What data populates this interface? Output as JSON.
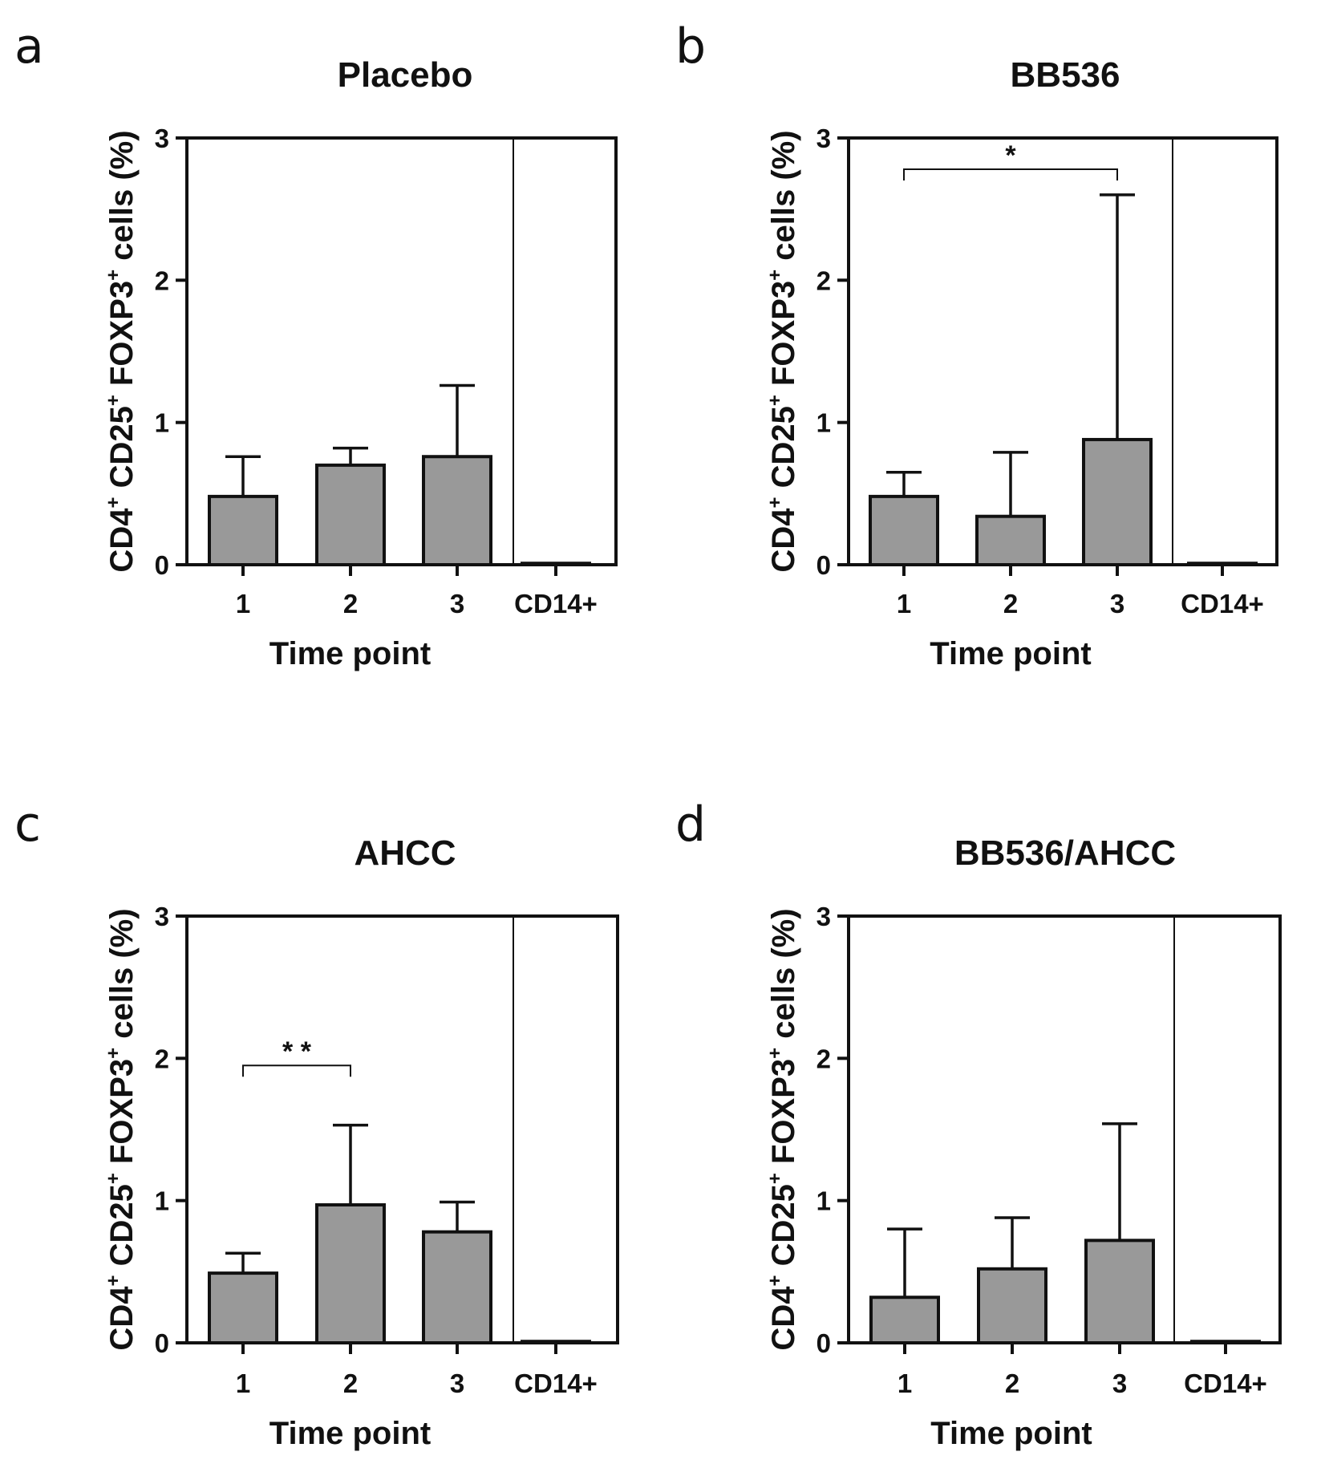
{
  "chart_data": [
    {
      "type": "bar",
      "panel": "a",
      "title": "Placebo",
      "categories": [
        "1",
        "2",
        "3",
        "CD14+"
      ],
      "values": [
        0.48,
        0.7,
        0.76,
        0.01
      ],
      "errors": [
        0.28,
        0.12,
        0.5,
        0.0
      ],
      "yticks": [
        "0",
        "1",
        "2",
        "3"
      ],
      "ylim": [
        0,
        3
      ],
      "xlabel": "Time point",
      "ylabel": {
        "p1": "CD4",
        "p1sup": "+",
        "p2": " CD25",
        "p2sup": "+",
        "p3": " FOXP3",
        "p3sup": "+",
        "p4": " cells (%)"
      },
      "significance": []
    },
    {
      "type": "bar",
      "panel": "b",
      "title": "BB536",
      "categories": [
        "1",
        "2",
        "3",
        "CD14+"
      ],
      "values": [
        0.48,
        0.34,
        0.88,
        0.01
      ],
      "errors": [
        0.17,
        0.45,
        1.72,
        0.0
      ],
      "yticks": [
        "0",
        "1",
        "2",
        "3"
      ],
      "ylim": [
        0,
        3
      ],
      "xlabel": "Time point",
      "ylabel": {
        "p1": "CD4",
        "p1sup": "+",
        "p2": " CD25",
        "p2sup": "+",
        "p3": " FOXP3",
        "p3sup": "+",
        "p4": " cells (%)"
      },
      "significance": [
        {
          "from": 0,
          "to": 2,
          "label": "*",
          "y": 2.78
        }
      ]
    },
    {
      "type": "bar",
      "panel": "c",
      "title": "AHCC",
      "categories": [
        "1",
        "2",
        "3",
        "CD14+"
      ],
      "values": [
        0.49,
        0.97,
        0.78,
        0.01
      ],
      "errors": [
        0.14,
        0.56,
        0.21,
        0.0
      ],
      "yticks": [
        "0",
        "1",
        "2",
        "3"
      ],
      "ylim": [
        0,
        3
      ],
      "xlabel": "Time point",
      "ylabel": {
        "p1": "CD4",
        "p1sup": "+",
        "p2": " CD25",
        "p2sup": "+",
        "p3": " FOXP3",
        "p3sup": "+",
        "p4": " cells (%)"
      },
      "significance": [
        {
          "from": 0,
          "to": 1,
          "label": "* *",
          "y": 1.95
        }
      ]
    },
    {
      "type": "bar",
      "panel": "d",
      "title": "BB536/AHCC",
      "categories": [
        "1",
        "2",
        "3",
        "CD14+"
      ],
      "values": [
        0.32,
        0.52,
        0.72,
        0.01
      ],
      "errors": [
        0.48,
        0.36,
        0.82,
        0.0
      ],
      "yticks": [
        "0",
        "1",
        "2",
        "3"
      ],
      "ylim": [
        0,
        3
      ],
      "xlabel": "Time point",
      "ylabel": {
        "p1": "CD4",
        "p1sup": "+",
        "p2": " CD25",
        "p2sup": "+",
        "p3": " FOXP3",
        "p3sup": "+",
        "p4": " cells (%)"
      },
      "significance": []
    }
  ],
  "colors": {
    "bar_fill": "#999999",
    "stroke": "#111111",
    "background": "#ffffff"
  }
}
